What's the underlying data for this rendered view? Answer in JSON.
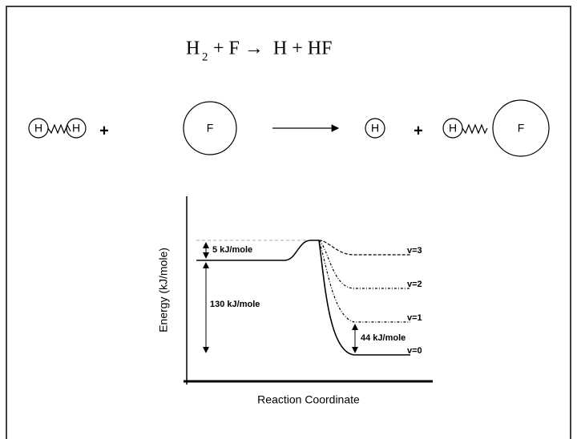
{
  "equation": {
    "base": "H",
    "subscript": "2",
    "rest": "+ F →  H + HF"
  },
  "reaction": {
    "reactants": [
      {
        "atoms": [
          "H",
          "H"
        ]
      },
      {
        "atoms": [
          "F"
        ]
      }
    ],
    "products": [
      {
        "atoms": [
          "H"
        ]
      },
      {
        "atoms": [
          "H",
          "F"
        ]
      }
    ],
    "plus": [
      "+",
      "+"
    ]
  },
  "energy_diagram": {
    "y_label": "Energy (kJ/mole)",
    "x_label": "Reaction Coordinate",
    "annotations": [
      "5 kJ/mole",
      "130 kJ/mole",
      "44 kJ/mole"
    ],
    "levels": [
      "v=3",
      "v=2",
      "v=1",
      "v=0"
    ]
  }
}
